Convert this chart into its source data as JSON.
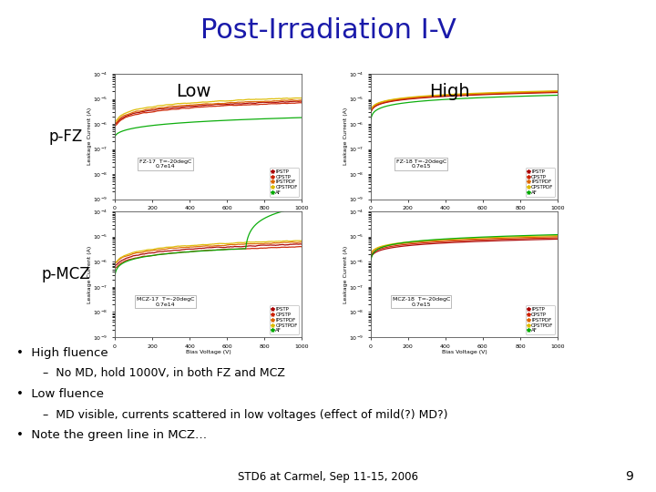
{
  "title": "Post-Irradiation I-V",
  "title_color": "#1a1aaa",
  "title_fontsize": 22,
  "background_color": "#ffffff",
  "label_pfz": "p-FZ",
  "label_pmcz": "p-MCZ",
  "label_low": "Low",
  "label_high": "High",
  "bullet_points": [
    {
      "text": "High fluence",
      "level": 0
    },
    {
      "text": "No MD, hold 1000V, in both FZ and MCZ",
      "level": 1
    },
    {
      "text": "Low fluence",
      "level": 0
    },
    {
      "text": "MD visible, currents scattered in low voltages (effect of mild(?) MD?)",
      "level": 1
    },
    {
      "text": "Note the green line in MCZ…",
      "level": 0
    }
  ],
  "footer_text": "STD6 at Carmel, Sep 11-15, 2006",
  "footer_page": "9",
  "plots": [
    {
      "subtitle": "FZ-17  T=-20degC\n0.7e14",
      "type": "low_fz"
    },
    {
      "subtitle": "FZ-18 T=-20degC\n0.7e15",
      "type": "high_fz"
    },
    {
      "subtitle": "MCZ-17  T=-20degC\n0.7e14",
      "type": "low_mcz"
    },
    {
      "subtitle": "MCZ-18  T=-20degC\n0.7e15",
      "type": "high_mcz"
    }
  ],
  "legend_labels": [
    "IPSTP",
    "CPSTP",
    "IPSTPDF",
    "CPSTPDF",
    "AF"
  ],
  "legend_colors": [
    "#aa0000",
    "#cc2200",
    "#dd6600",
    "#ddbb00",
    "#00aa00"
  ],
  "xlabel": "Bias Voltage (V)",
  "ylabel": "Leakage Current (A)"
}
